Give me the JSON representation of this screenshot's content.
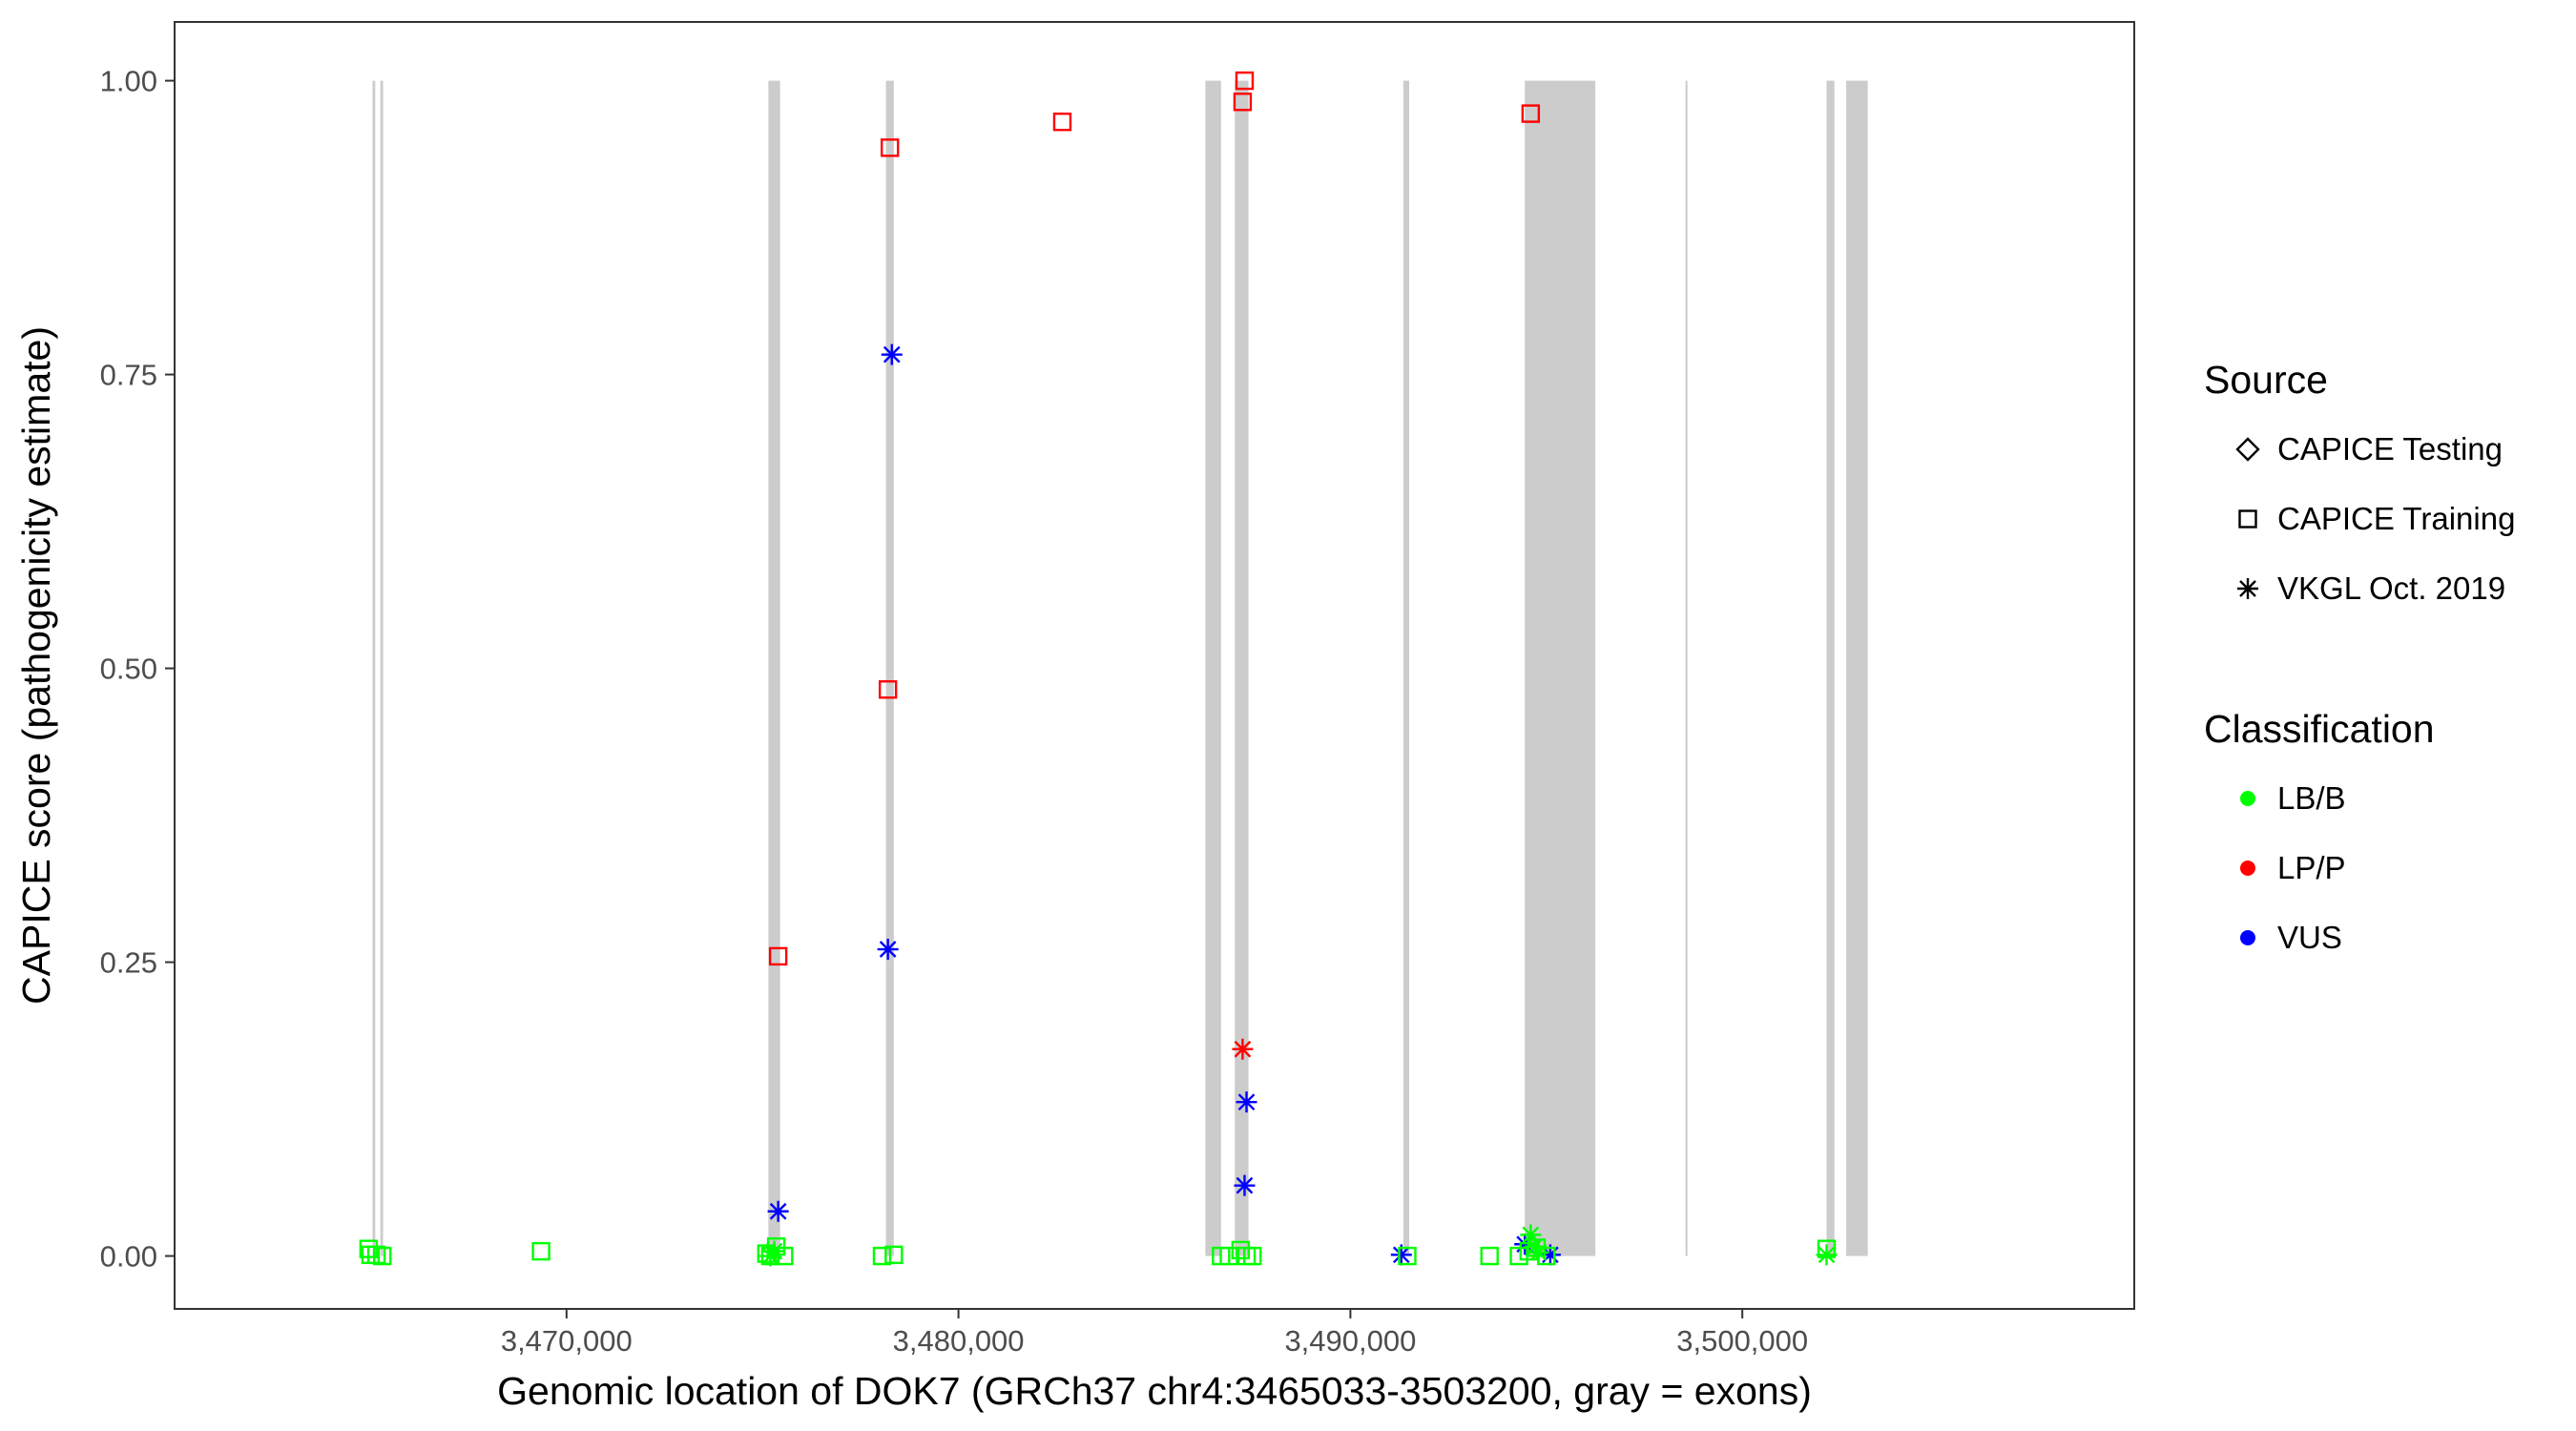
{
  "chart_data": {
    "type": "scatter",
    "title": "",
    "xlabel": "Genomic location of DOK7 (GRCh37 chr4:3465033-3503200, gray = exons)",
    "ylabel": "CAPICE score (pathogenicity estimate)",
    "xlim": [
      3460000,
      3510000
    ],
    "ylim": [
      -0.045,
      1.05
    ],
    "x_ticks": [
      3470000,
      3480000,
      3490000,
      3500000
    ],
    "x_tick_labels": [
      "3,470,000",
      "3,480,000",
      "3,490,000",
      "3,500,000"
    ],
    "y_ticks": [
      0,
      0.25,
      0.5,
      0.75,
      1.0
    ],
    "y_tick_labels": [
      "0.00",
      "0.25",
      "0.50",
      "0.75",
      "1.00"
    ],
    "grid": false,
    "legend_position": "right",
    "exons": [
      [
        3465050,
        3465120
      ],
      [
        3465250,
        3465320
      ],
      [
        3475150,
        3475450
      ],
      [
        3478150,
        3478350
      ],
      [
        3486300,
        3486700
      ],
      [
        3487050,
        3487400
      ],
      [
        3491350,
        3491500
      ],
      [
        3494450,
        3496250
      ],
      [
        3498550,
        3498600
      ],
      [
        3502150,
        3502350
      ],
      [
        3502650,
        3503200
      ]
    ],
    "legends": [
      {
        "title": "Source",
        "entries": [
          {
            "label": "CAPICE Testing",
            "shape": "diamond"
          },
          {
            "label": "CAPICE Training",
            "shape": "square"
          },
          {
            "label": "VKGL Oct. 2019",
            "shape": "asterisk"
          }
        ]
      },
      {
        "title": "Classification",
        "entries": [
          {
            "label": "LB/B",
            "color": "#00ff00"
          },
          {
            "label": "LP/P",
            "color": "#ff0000"
          },
          {
            "label": "VUS",
            "color": "#0000ff"
          }
        ]
      }
    ],
    "colors": {
      "LB/B": "#00ff00",
      "LP/P": "#ff0000",
      "VUS": "#0000ff",
      "exon": "#cccccc"
    },
    "series": [
      {
        "name": "CAPICE Training LP/P",
        "shape": "square",
        "class": "LP/P",
        "points": [
          [
            3487300,
            1.0
          ],
          [
            3487250,
            0.982
          ],
          [
            3482650,
            0.965
          ],
          [
            3494600,
            0.972
          ],
          [
            3478250,
            0.943
          ],
          [
            3478200,
            0.482
          ],
          [
            3475400,
            0.255
          ]
        ]
      },
      {
        "name": "VKGL Oct. 2019 VUS",
        "shape": "asterisk",
        "class": "VUS",
        "points": [
          [
            3478300,
            0.767
          ],
          [
            3478200,
            0.261
          ],
          [
            3475400,
            0.038
          ],
          [
            3487350,
            0.131
          ],
          [
            3487300,
            0.06
          ],
          [
            3491300,
            0.001
          ],
          [
            3494450,
            0.01
          ],
          [
            3495100,
            0.001
          ]
        ]
      },
      {
        "name": "VKGL Oct. 2019 LP/P",
        "shape": "asterisk",
        "class": "LP/P",
        "points": [
          [
            3487250,
            0.176
          ]
        ]
      },
      {
        "name": "CAPICE Training LB/B",
        "shape": "square",
        "class": "LB/B",
        "points": [
          [
            3464950,
            0.006
          ],
          [
            3465000,
            0.001
          ],
          [
            3465150,
            0.001
          ],
          [
            3465300,
            0.0
          ],
          [
            3469350,
            0.004
          ],
          [
            3475100,
            0.002
          ],
          [
            3475200,
            0.0
          ],
          [
            3475350,
            0.008
          ],
          [
            3475550,
            0.0
          ],
          [
            3478050,
            0.0
          ],
          [
            3478350,
            0.001
          ],
          [
            3486700,
            0.0
          ],
          [
            3486900,
            0.0
          ],
          [
            3487200,
            0.005
          ],
          [
            3487350,
            0.0
          ],
          [
            3487500,
            0.0
          ],
          [
            3491450,
            0.0
          ],
          [
            3493550,
            0.0
          ],
          [
            3494300,
            0.0
          ],
          [
            3494550,
            0.004
          ],
          [
            3494750,
            0.007
          ],
          [
            3495000,
            0.0
          ],
          [
            3502150,
            0.006
          ]
        ]
      },
      {
        "name": "VKGL Oct. 2019 LB/B",
        "shape": "asterisk",
        "class": "LB/B",
        "points": [
          [
            3475200,
            0.0
          ],
          [
            3475300,
            0.004
          ],
          [
            3494600,
            0.018
          ],
          [
            3494700,
            0.008
          ],
          [
            3494800,
            0.003
          ],
          [
            3502150,
            0.001
          ]
        ]
      }
    ]
  }
}
